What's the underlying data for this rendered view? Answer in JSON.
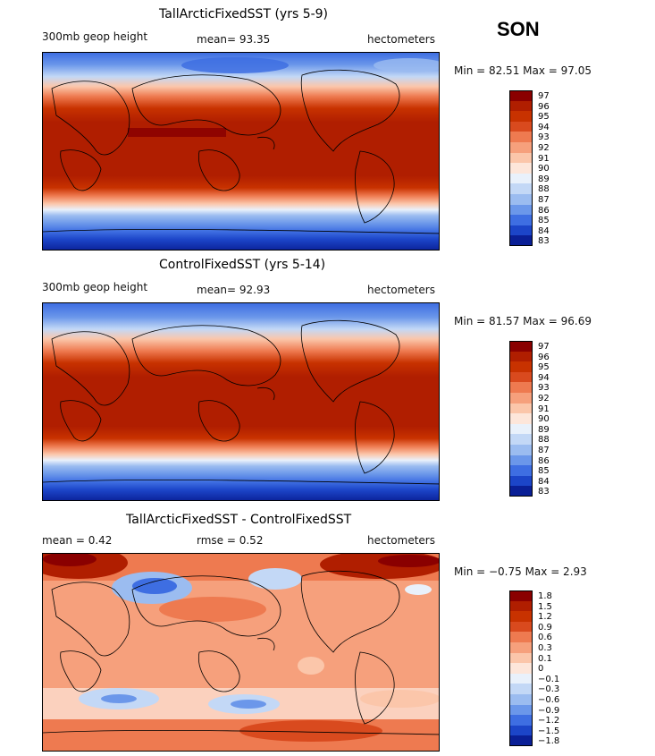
{
  "season": "SON",
  "panels": [
    {
      "title": "TallArcticFixedSST (yrs 5-9)",
      "left_label": "300mb geop height",
      "center_label": "mean=  93.35",
      "right_label": "hectometers",
      "minmax_label": "Min =  82.51 Max =  97.05",
      "colorbar": {
        "ticks": [
          "97",
          "96",
          "95",
          "94",
          "93",
          "92",
          "91",
          "90",
          "89",
          "88",
          "87",
          "86",
          "85",
          "84",
          "83"
        ],
        "colors": [
          "#8a0000",
          "#b01e00",
          "#c83200",
          "#d94a1e",
          "#ee7a50",
          "#f6a07c",
          "#fbc6aa",
          "#fde6da",
          "#e9f1fb",
          "#c3d8f6",
          "#9bbcf0",
          "#6b97ea",
          "#3e6ee2",
          "#1c45c8",
          "#0a1f96"
        ]
      }
    },
    {
      "title": "ControlFixedSST (yrs 5-14)",
      "left_label": "300mb geop height",
      "center_label": "mean=  92.93",
      "right_label": "hectometers",
      "minmax_label": "Min =  81.57 Max =  96.69",
      "colorbar": {
        "ticks": [
          "97",
          "96",
          "95",
          "94",
          "93",
          "92",
          "91",
          "90",
          "89",
          "88",
          "87",
          "86",
          "85",
          "84",
          "83"
        ],
        "colors": [
          "#8a0000",
          "#b01e00",
          "#c83200",
          "#d94a1e",
          "#ee7a50",
          "#f6a07c",
          "#fbc6aa",
          "#fde6da",
          "#e9f1fb",
          "#c3d8f6",
          "#9bbcf0",
          "#6b97ea",
          "#3e6ee2",
          "#1c45c8",
          "#0a1f96"
        ]
      }
    },
    {
      "title": "TallArcticFixedSST - ControlFixedSST",
      "left_label": "mean =    0.42",
      "center_label": "rmse =    0.52",
      "right_label": "hectometers",
      "minmax_label": "Min =  −0.75 Max =    2.93",
      "colorbar": {
        "ticks": [
          "1.8",
          "1.5",
          "1.2",
          "0.9",
          "0.6",
          "0.3",
          "0.1",
          "0",
          "−0.1",
          "−0.3",
          "−0.6",
          "−0.9",
          "−1.2",
          "−1.5",
          "−1.8"
        ],
        "colors": [
          "#8a0000",
          "#b01e00",
          "#c83200",
          "#d94a1e",
          "#ee7a50",
          "#f6a07c",
          "#fbc6aa",
          "#fde6da",
          "#e9f1fb",
          "#c3d8f6",
          "#9bbcf0",
          "#6b97ea",
          "#3e6ee2",
          "#1c45c8",
          "#0a1f96"
        ]
      }
    }
  ]
}
